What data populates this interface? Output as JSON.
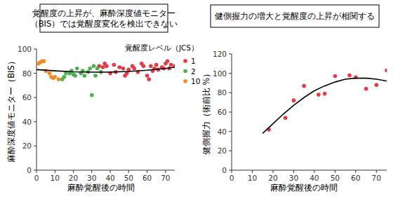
{
  "chart_data": [
    {
      "type": "scatter",
      "title": "覚醒度の上昇が、麻酔深度値モニター\n（BIS）では覚醒度変化を検出できない",
      "x_label": "麻酔覚醒後の時間",
      "y_label": "麻酔深度値モニター（BIS）",
      "legend_title": "覚醒度レベル（JCS）",
      "legend": "top-right",
      "xlim": [
        0,
        75
      ],
      "xticks": [
        0,
        10,
        20,
        30,
        40,
        50,
        60,
        70
      ],
      "ylim": [
        0,
        100
      ],
      "yticks": [
        0,
        20,
        40,
        60,
        80,
        100
      ],
      "series": [
        {
          "name": "1",
          "color": "#e63946",
          "marker": "circle",
          "x": [
            34,
            36,
            37,
            38,
            40,
            42,
            43,
            45,
            47,
            48,
            49,
            50,
            52,
            53,
            55,
            57,
            58,
            60,
            61,
            62,
            63,
            64,
            65,
            66,
            68,
            69,
            70,
            71,
            72,
            73,
            75
          ],
          "values": [
            86,
            85,
            88,
            86,
            80,
            87,
            81,
            85,
            84,
            78,
            80,
            83,
            86,
            84,
            81,
            88,
            86,
            78,
            75,
            86,
            82,
            84,
            87,
            83,
            85,
            84,
            88,
            90,
            84,
            87,
            86
          ]
        },
        {
          "name": "2",
          "color": "#4caf50",
          "marker": "circle",
          "x": [
            14,
            15,
            16,
            18,
            19,
            20,
            21,
            22,
            24,
            25,
            26,
            28,
            29,
            30,
            31,
            32,
            33,
            35
          ],
          "values": [
            75,
            77,
            80,
            80,
            82,
            79,
            78,
            84,
            80,
            82,
            78,
            81,
            84,
            62,
            86,
            78,
            84,
            81
          ]
        },
        {
          "name": "10",
          "color": "#f08a24",
          "marker": "circle",
          "x": [
            1,
            2,
            3,
            4,
            5,
            7,
            8,
            9,
            10,
            12
          ],
          "values": [
            88,
            89,
            90,
            90,
            82,
            80,
            77,
            76,
            77,
            75
          ]
        },
        {
          "type": "line",
          "color": "#000000",
          "line_style": "solid",
          "x": [
            0,
            10,
            20,
            30,
            40,
            50,
            60,
            70,
            75
          ],
          "values": [
            83,
            82,
            81.2,
            80.9,
            81,
            81.5,
            82.5,
            84,
            85
          ]
        }
      ]
    },
    {
      "type": "scatter",
      "title": "健側握力の増大と覚醒度の上昇が相関する",
      "x_label": "麻酔覚醒後の時間",
      "y_label": "健側握力（術前比 %）",
      "xlim": [
        0,
        75
      ],
      "xticks": [
        0,
        10,
        20,
        30,
        40,
        50,
        60,
        70
      ],
      "ylim": [
        0,
        120
      ],
      "yticks": [
        0,
        20,
        40,
        60,
        80,
        100,
        120
      ],
      "series": [
        {
          "color": "#e63946",
          "marker": "circle",
          "x": [
            18,
            26,
            30,
            35,
            42,
            45,
            50,
            57,
            60,
            65,
            70,
            75
          ],
          "values": [
            42,
            54,
            72,
            87,
            78,
            79,
            97,
            98,
            96,
            84,
            88,
            103
          ]
        },
        {
          "type": "line",
          "color": "#000000",
          "line_style": "solid",
          "x": [
            15,
            20,
            25,
            30,
            35,
            40,
            45,
            50,
            55,
            60,
            65,
            70,
            75
          ],
          "values": [
            38,
            48,
            58,
            67,
            75,
            82,
            87,
            91,
            94,
            95,
            95,
            94,
            92
          ]
        }
      ]
    }
  ]
}
